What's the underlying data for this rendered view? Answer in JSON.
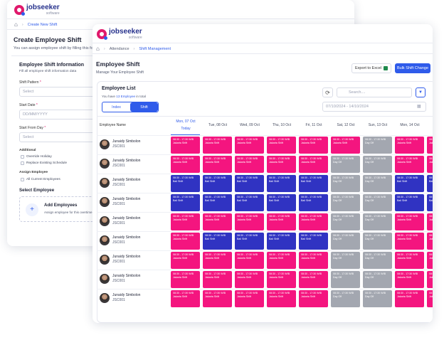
{
  "brand": {
    "name": "jobseeker",
    "sub": "software"
  },
  "back": {
    "breadcrumb_current": "Create New Shift",
    "title": "Create Employee Shift",
    "subtitle": "You can assign employee shift by filling this form",
    "section_title": "Employee Shift Information",
    "section_sub": "Fill all employee shift information data",
    "fields": {
      "shift_pattern_label": "Shift Pattern",
      "shift_pattern_placeholder": "Select",
      "start_date_label": "Start Date",
      "start_date_placeholder": "DD/MM/YYYY",
      "start_from_day_label": "Start From Day",
      "start_from_day_placeholder": "Select"
    },
    "additional_label": "Additional",
    "override_holiday": "Override Holiday",
    "replace_existing": "Replace Existing Schedule",
    "assign_employee_label": "Assign Employee",
    "all_current_employees": "All Current Employees",
    "select_employee": "Select Employee",
    "add_employees_title": "Add Employees",
    "add_employees_sub": "Assign employee for this overtime plan"
  },
  "front": {
    "breadcrumb": [
      "Attendance",
      "Shift Management"
    ],
    "title": "Employee Shift",
    "subtitle": "Manage Your Employee Shift",
    "export_label": "Export to Excel",
    "bulk_label": "Bulk Shift Change",
    "list_title": "Employee List",
    "list_count_prefix": "You have",
    "list_count_link": "13 Employee",
    "list_count_suffix": "in total",
    "tabs": [
      "Index",
      "Shift"
    ],
    "active_tab": "Shift",
    "search_placeholder": "Search....",
    "date_range": "07/10/2024 - 14/10/2024",
    "employee_col": "Employee Name",
    "days": [
      "Mon, 07 Oct",
      "Tue, 08 Oct",
      "Wed, 09 Oct",
      "Thu, 10 Oct",
      "Fri, 11 Oct",
      "Sat, 12 Oct",
      "Sun, 13 Oct",
      "Mon, 14 Oct",
      "Tue,"
    ],
    "today_label": "Today",
    "shift_time": "08:30 - 17:30 WIB",
    "shift_names": {
      "pink": "Jakarta Shift",
      "blue": "Bali Shift",
      "gray": "Day Off"
    },
    "colors": {
      "pink": "#f4157f",
      "blue": "#3033c2",
      "gray": "#a3a7b0",
      "accent": "#2f5bea"
    },
    "employees": [
      {
        "name": "Junaidy Simbolon",
        "code": "JSC001",
        "shifts": [
          "pink",
          "pink",
          "pink",
          "pink",
          "pink",
          "pink",
          "gray",
          "pink",
          "pink"
        ]
      },
      {
        "name": "Junaidy Simbolon",
        "code": "JSC001",
        "shifts": [
          "pink",
          "pink",
          "pink",
          "pink",
          "pink",
          "gray",
          "gray",
          "pink",
          "pink"
        ]
      },
      {
        "name": "Junaidy Simbolon",
        "code": "JSC001",
        "shifts": [
          "blue",
          "blue",
          "blue",
          "blue",
          "blue",
          "gray",
          "gray",
          "blue",
          "blue"
        ]
      },
      {
        "name": "Junaidy Simbolon",
        "code": "JSC001",
        "shifts": [
          "blue",
          "blue",
          "blue",
          "blue",
          "blue",
          "gray",
          "gray",
          "blue",
          "blue"
        ]
      },
      {
        "name": "Junaidy Simbolon",
        "code": "JSC001",
        "shifts": [
          "pink",
          "pink",
          "pink",
          "pink",
          "pink",
          "gray",
          "gray",
          "pink",
          "pink"
        ]
      },
      {
        "name": "Junaidy Simbolon",
        "code": "JSC001",
        "shifts": [
          "pink",
          "blue",
          "blue",
          "blue",
          "blue",
          "gray",
          "gray",
          "pink",
          "pink"
        ]
      },
      {
        "name": "Junaidy Simbolon",
        "code": "JSC001",
        "shifts": [
          "pink",
          "pink",
          "pink",
          "pink",
          "pink",
          "gray",
          "gray",
          "pink",
          "pink"
        ]
      },
      {
        "name": "Junaidy Simbolon",
        "code": "JSC001",
        "shifts": [
          "pink",
          "pink",
          "pink",
          "pink",
          "pink",
          "gray",
          "gray",
          "pink",
          "pink"
        ]
      },
      {
        "name": "Junaidy Simbolon",
        "code": "JSC001",
        "shifts": [
          "pink",
          "pink",
          "pink",
          "pink",
          "pink",
          "gray",
          "gray",
          "pink",
          "pink"
        ]
      }
    ]
  }
}
